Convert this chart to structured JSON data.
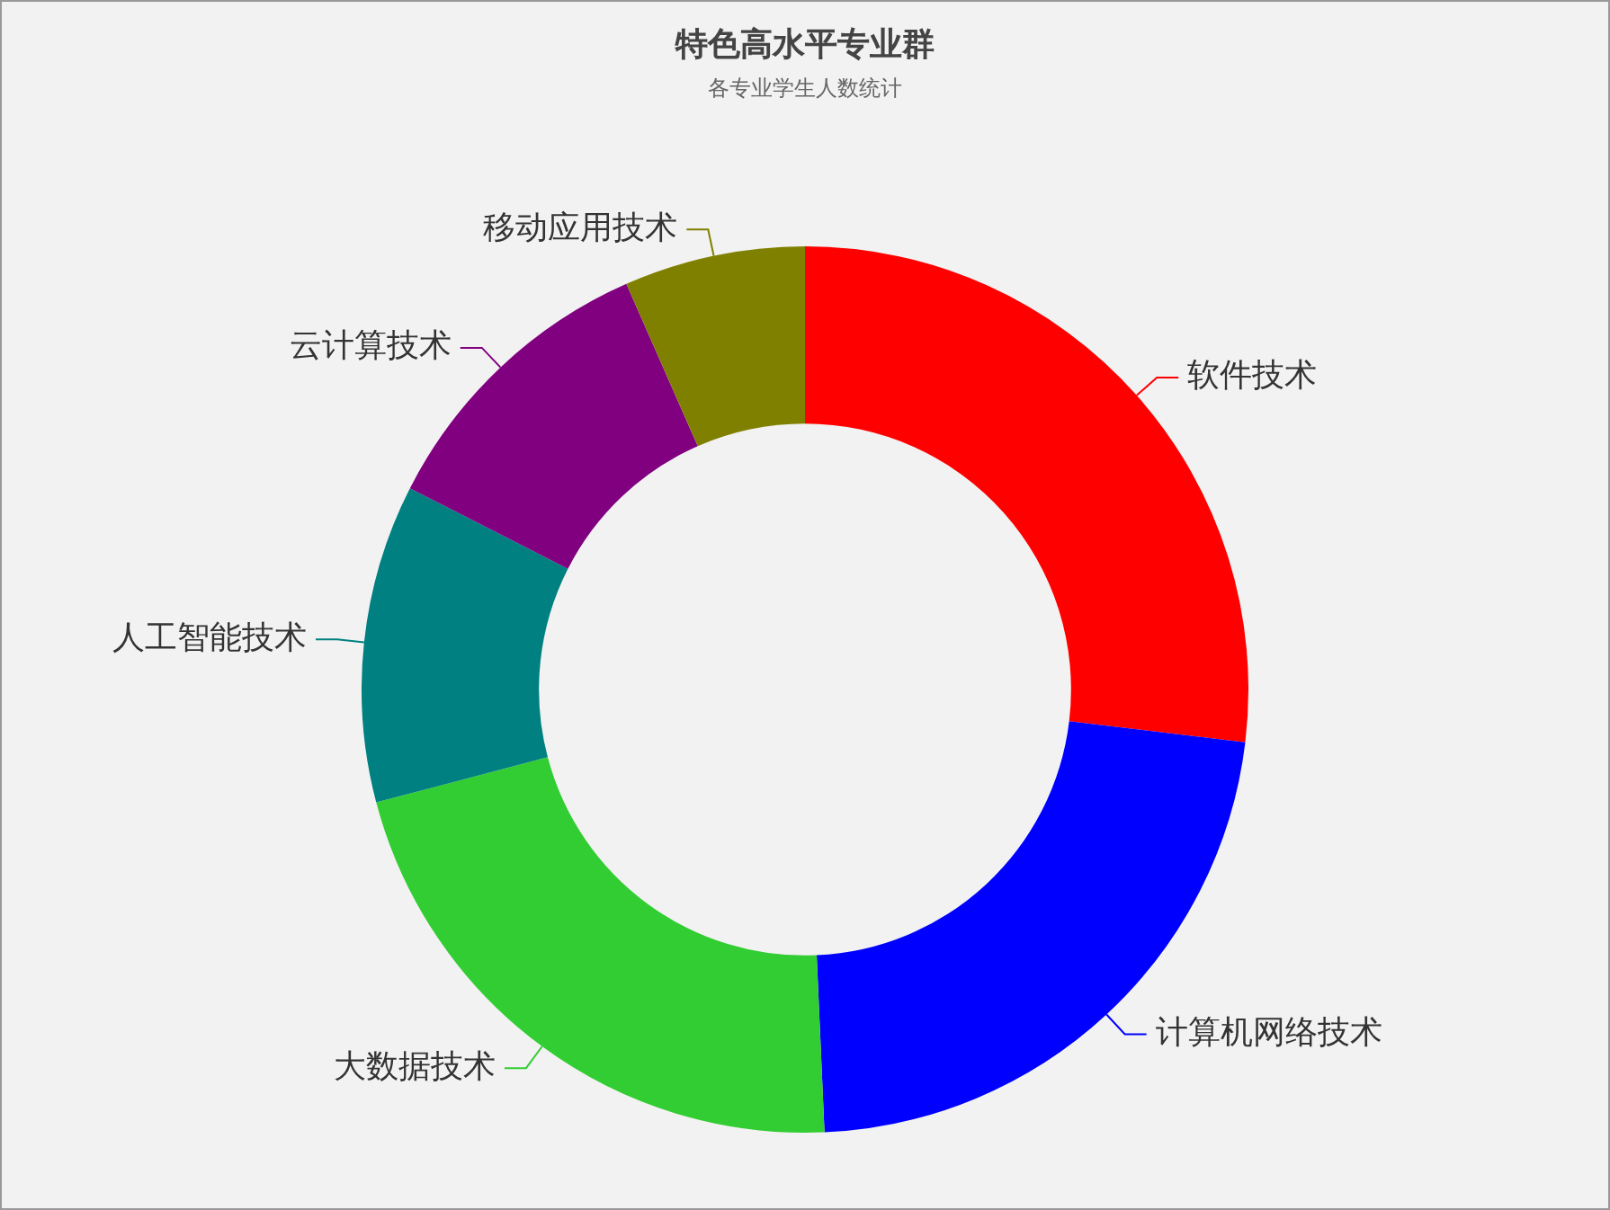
{
  "chart_data": {
    "type": "donut",
    "title": "特色高水平专业群",
    "subtitle": "各专业学生人数统计",
    "categories": [
      "软件技术",
      "计算机网络技术",
      "大数据技术",
      "人工智能技术",
      "云计算技术",
      "移动应用技术"
    ],
    "values": [
      26.9,
      22.4,
      21.6,
      11.6,
      10.9,
      6.6
    ],
    "colors": [
      "#ff0000",
      "#0000ff",
      "#32cd32",
      "#008080",
      "#800080",
      "#808000"
    ],
    "legend": false
  }
}
